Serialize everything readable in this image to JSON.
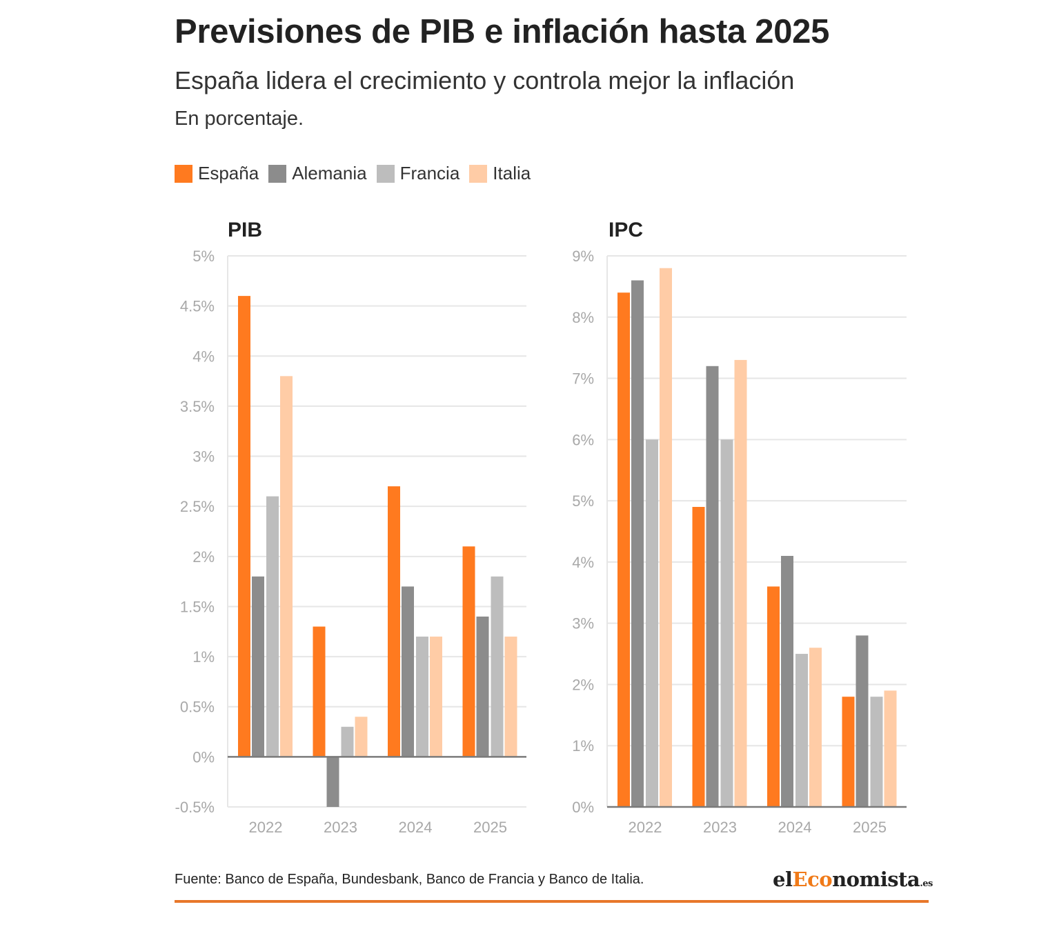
{
  "title": "Previsiones de PIB e inflación hasta 2025",
  "subtitle": "España lidera el crecimiento y controla mejor la inflación",
  "unit_note": "En porcentaje.",
  "legend": [
    {
      "label": "España",
      "color": "#ff7a1f"
    },
    {
      "label": "Alemania",
      "color": "#8c8c8c"
    },
    {
      "label": "Francia",
      "color": "#bdbdbd"
    },
    {
      "label": "Italia",
      "color": "#ffcca6"
    }
  ],
  "chart_data": [
    {
      "type": "bar",
      "title": "PIB",
      "categories": [
        "2022",
        "2023",
        "2024",
        "2025"
      ],
      "ylim": [
        -0.5,
        5
      ],
      "yticks": [
        -0.5,
        0,
        0.5,
        1,
        1.5,
        2,
        2.5,
        3,
        3.5,
        4,
        4.5,
        5
      ],
      "ytick_labels": [
        "-0.5%",
        "0%",
        "0.5%",
        "1%",
        "1.5%",
        "2%",
        "2.5%",
        "3%",
        "3.5%",
        "4%",
        "4.5%",
        "5%"
      ],
      "series": [
        {
          "name": "España",
          "values": [
            4.6,
            1.3,
            2.7,
            2.1
          ]
        },
        {
          "name": "Alemania",
          "values": [
            1.8,
            -0.5,
            1.7,
            1.4
          ]
        },
        {
          "name": "Francia",
          "values": [
            2.6,
            0.3,
            1.2,
            1.8
          ]
        },
        {
          "name": "Italia",
          "values": [
            3.8,
            0.4,
            1.2,
            1.2
          ]
        }
      ]
    },
    {
      "type": "bar",
      "title": "IPC",
      "categories": [
        "2022",
        "2023",
        "2024",
        "2025"
      ],
      "ylim": [
        0,
        9
      ],
      "yticks": [
        0,
        1,
        2,
        3,
        4,
        5,
        6,
        7,
        8,
        9
      ],
      "ytick_labels": [
        "0%",
        "1%",
        "2%",
        "3%",
        "4%",
        "5%",
        "6%",
        "7%",
        "8%",
        "9%"
      ],
      "series": [
        {
          "name": "España",
          "values": [
            8.4,
            4.9,
            3.6,
            1.8
          ]
        },
        {
          "name": "Alemania",
          "values": [
            8.6,
            7.2,
            4.1,
            2.8
          ]
        },
        {
          "name": "Francia",
          "values": [
            6.0,
            6.0,
            2.5,
            1.8
          ]
        },
        {
          "name": "Italia",
          "values": [
            8.8,
            7.3,
            2.6,
            1.9
          ]
        }
      ]
    }
  ],
  "footer": {
    "source": "Fuente: Banco de España, Bundesbank, Banco de Francia y Banco de Italia.",
    "logo_prefix": "el",
    "logo_accent": "Eco",
    "logo_suffix": "nomista",
    "logo_tld": ".es"
  }
}
